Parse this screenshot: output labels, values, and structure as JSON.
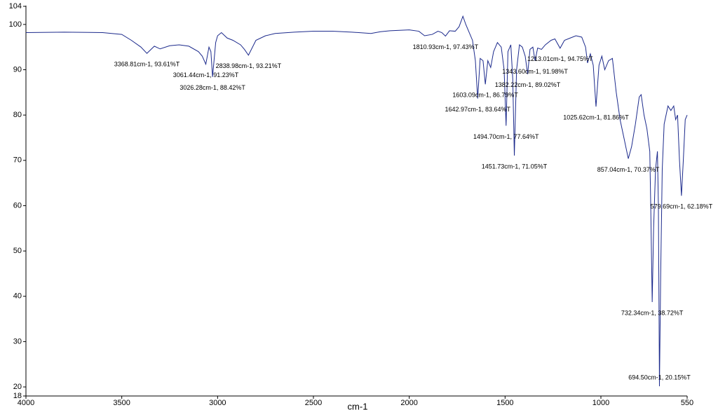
{
  "chart_data": {
    "type": "line",
    "x_label": "cm-1",
    "xlim": [
      4000,
      550
    ],
    "ylim": [
      18,
      104
    ],
    "xticks": [
      4000,
      3500,
      3000,
      2500,
      2000,
      1500,
      1000,
      550
    ],
    "yticks": [
      18,
      20,
      30,
      40,
      50,
      60,
      70,
      80,
      90,
      100,
      104
    ],
    "grid": false,
    "x": [
      4000,
      3800,
      3600,
      3500,
      3450,
      3400,
      3368.81,
      3330,
      3300,
      3250,
      3200,
      3150,
      3100,
      3080,
      3061.44,
      3045,
      3035,
      3026.28,
      3010,
      3000,
      2980,
      2950,
      2920,
      2880,
      2860,
      2838.98,
      2800,
      2750,
      2700,
      2600,
      2500,
      2400,
      2300,
      2200,
      2150,
      2100,
      2000,
      1950,
      1920,
      1880,
      1850,
      1830,
      1810.93,
      1790,
      1760,
      1740,
      1720,
      1705,
      1690,
      1670,
      1655,
      1642.97,
      1630,
      1615,
      1603.09,
      1590,
      1575,
      1560,
      1540,
      1520,
      1505,
      1494.7,
      1485,
      1470,
      1460,
      1451.73,
      1440,
      1425,
      1410,
      1395,
      1382.22,
      1370,
      1355,
      1343.6,
      1330,
      1310,
      1290,
      1260,
      1240,
      1213.01,
      1190,
      1160,
      1130,
      1100,
      1080,
      1070,
      1055,
      1040,
      1025.62,
      1010,
      995,
      980,
      960,
      940,
      920,
      900,
      880,
      857.04,
      840,
      820,
      800,
      790,
      775,
      760,
      745,
      740,
      732.34,
      725,
      715,
      705,
      700,
      694.5,
      688,
      680,
      670,
      650,
      635,
      620,
      610,
      600,
      590,
      579.69,
      570,
      560,
      550
    ],
    "series": [
      {
        "color": "#1c2a8c",
        "values": [
          98.2,
          98.3,
          98.2,
          97.8,
          96.5,
          95.0,
          93.61,
          95.2,
          94.6,
          95.3,
          95.5,
          95.2,
          94.0,
          93.0,
          91.23,
          95,
          94,
          88.42,
          96,
          97.5,
          98.2,
          97.0,
          96.5,
          95.5,
          94.5,
          93.21,
          96.5,
          97.5,
          98.0,
          98.3,
          98.5,
          98.5,
          98.3,
          98.0,
          98.4,
          98.6,
          98.8,
          98.5,
          97.5,
          97.8,
          98.5,
          98.2,
          97.43,
          98.6,
          98.5,
          99.5,
          101.8,
          100,
          98.5,
          96.5,
          92,
          83.64,
          92.5,
          92,
          86.79,
          92,
          90.5,
          94,
          96,
          95,
          90,
          77.64,
          94,
          95.5,
          88,
          71.05,
          90,
          95.5,
          95,
          93,
          89.02,
          94.5,
          95,
          91.98,
          94.8,
          94.5,
          95.5,
          96.5,
          96.8,
          94.75,
          96.5,
          97.0,
          97.5,
          97.2,
          95,
          91.5,
          93.5,
          91,
          81.86,
          91,
          93,
          90,
          92,
          92.5,
          85,
          79,
          75,
          70.37,
          73,
          78,
          84,
          84.5,
          80,
          77,
          72,
          60,
          38.72,
          55,
          68,
          72,
          60,
          20.15,
          45,
          68,
          78,
          82,
          81,
          82,
          79,
          80,
          70,
          62.18,
          70,
          79,
          80
        ]
      }
    ],
    "annotation_color": "#2b2bff",
    "annotations": [
      {
        "x": 3368.81,
        "y": 93.61,
        "label": "3368.81cm-1, 93.61%T"
      },
      {
        "x": 3061.44,
        "y": 91.23,
        "label": "3061.44cm-1, 91.23%T"
      },
      {
        "x": 3026.28,
        "y": 88.42,
        "label": "3026.28cm-1, 88.42%T"
      },
      {
        "x": 2838.98,
        "y": 93.21,
        "label": "2838.98cm-1, 93.21%T"
      },
      {
        "x": 1810.93,
        "y": 97.43,
        "label": "1810.93cm-1, 97.43%T"
      },
      {
        "x": 1642.97,
        "y": 83.64,
        "label": "1642.97cm-1, 83.64%T"
      },
      {
        "x": 1603.09,
        "y": 86.79,
        "label": "1603.09cm-1, 86.79%T"
      },
      {
        "x": 1494.7,
        "y": 77.64,
        "label": "1494.70cm-1, 77.64%T"
      },
      {
        "x": 1451.73,
        "y": 71.05,
        "label": "1451.73cm-1, 71.05%T"
      },
      {
        "x": 1382.22,
        "y": 89.02,
        "label": "1382.22cm-1, 89.02%T"
      },
      {
        "x": 1343.6,
        "y": 91.98,
        "label": "1343.60cm-1, 91.98%T"
      },
      {
        "x": 1213.01,
        "y": 94.75,
        "label": "1213.01cm-1, 94.75%T"
      },
      {
        "x": 1025.62,
        "y": 81.86,
        "label": "1025.62cm-1, 81.86%T"
      },
      {
        "x": 857.04,
        "y": 70.37,
        "label": "857.04cm-1, 70.37%T"
      },
      {
        "x": 732.34,
        "y": 38.72,
        "label": "732.34cm-1, 38.72%T"
      },
      {
        "x": 694.5,
        "y": 20.15,
        "label": "694.50cm-1, 20.15%T"
      },
      {
        "x": 579.69,
        "y": 62.18,
        "label": "579.69cm-1, 62.18%T"
      }
    ]
  }
}
